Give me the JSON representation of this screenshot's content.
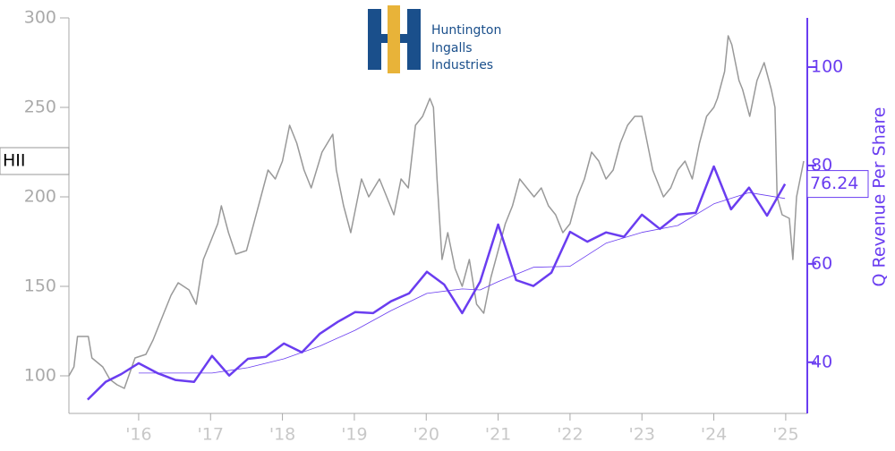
{
  "chart_data": {
    "type": "line",
    "logo_text": [
      "Huntington",
      "Ingalls",
      "Industries"
    ],
    "y2label": "Q Revenue Per Share",
    "xlim": [
      2015.03,
      2025.3
    ],
    "xticks": [
      {
        "value": 2016,
        "label": "'16"
      },
      {
        "value": 2017,
        "label": "'17"
      },
      {
        "value": 2018,
        "label": "'18"
      },
      {
        "value": 2019,
        "label": "'19"
      },
      {
        "value": 2020,
        "label": "'20"
      },
      {
        "value": 2021,
        "label": "'21"
      },
      {
        "value": 2022,
        "label": "'22"
      },
      {
        "value": 2023,
        "label": "'23"
      },
      {
        "value": 2024,
        "label": "'24"
      },
      {
        "value": 2025,
        "label": "'25"
      }
    ],
    "ylim": [
      79,
      300
    ],
    "yticks": [
      100,
      150,
      200,
      250,
      300
    ],
    "y2lim": [
      29.6,
      110
    ],
    "y2ticks": [
      40,
      60,
      80,
      100
    ],
    "series": [
      {
        "name": "HII",
        "color": "#999999",
        "axis": "y",
        "x": [
          2015.03,
          2015.1,
          2015.15,
          2015.3,
          2015.35,
          2015.5,
          2015.6,
          2015.7,
          2015.8,
          2015.95,
          2016.1,
          2016.2,
          2016.35,
          2016.45,
          2016.55,
          2016.7,
          2016.8,
          2016.9,
          2017.0,
          2017.1,
          2017.15,
          2017.25,
          2017.35,
          2017.5,
          2017.6,
          2017.7,
          2017.8,
          2017.9,
          2018.0,
          2018.1,
          2018.2,
          2018.3,
          2018.4,
          2018.55,
          2018.7,
          2018.75,
          2018.85,
          2018.95,
          2019.0,
          2019.1,
          2019.2,
          2019.35,
          2019.45,
          2019.55,
          2019.65,
          2019.75,
          2019.85,
          2019.95,
          2020.05,
          2020.1,
          2020.15,
          2020.22,
          2020.3,
          2020.4,
          2020.5,
          2020.6,
          2020.7,
          2020.8,
          2020.9,
          2021.0,
          2021.1,
          2021.2,
          2021.3,
          2021.4,
          2021.5,
          2021.6,
          2021.7,
          2021.8,
          2021.9,
          2022.0,
          2022.1,
          2022.2,
          2022.3,
          2022.4,
          2022.5,
          2022.6,
          2022.7,
          2022.8,
          2022.9,
          2023.0,
          2023.05,
          2023.15,
          2023.3,
          2023.4,
          2023.5,
          2023.6,
          2023.7,
          2023.8,
          2023.9,
          2024.0,
          2024.05,
          2024.15,
          2024.2,
          2024.25,
          2024.35,
          2024.4,
          2024.5,
          2024.6,
          2024.7,
          2024.8,
          2024.85,
          2024.88,
          2024.95,
          2025.05,
          2025.1,
          2025.15,
          2025.25
        ],
        "values": [
          100,
          105,
          122,
          122,
          110,
          105,
          98,
          95,
          93,
          110,
          112,
          120,
          135,
          145,
          152,
          148,
          140,
          165,
          175,
          185,
          195,
          180,
          168,
          170,
          185,
          200,
          215,
          210,
          220,
          240,
          230,
          215,
          205,
          225,
          235,
          215,
          195,
          180,
          190,
          210,
          200,
          210,
          200,
          190,
          210,
          205,
          240,
          245,
          255,
          250,
          210,
          165,
          180,
          160,
          150,
          165,
          140,
          135,
          155,
          170,
          185,
          195,
          210,
          205,
          200,
          205,
          195,
          190,
          180,
          185,
          200,
          210,
          225,
          220,
          210,
          215,
          230,
          240,
          245,
          245,
          235,
          215,
          200,
          205,
          215,
          220,
          210,
          230,
          245,
          250,
          255,
          270,
          290,
          285,
          265,
          260,
          245,
          265,
          275,
          260,
          250,
          200,
          190,
          188,
          165,
          200,
          220
        ]
      },
      {
        "color": "#6a3df0",
        "axis": "y2",
        "x": [
          2015.29,
          2015.54,
          2015.76,
          2016.0,
          2016.26,
          2016.51,
          2016.77,
          2017.02,
          2017.26,
          2017.52,
          2017.77,
          2018.02,
          2018.27,
          2018.52,
          2018.77,
          2019.01,
          2019.26,
          2019.51,
          2019.76,
          2020.01,
          2020.25,
          2020.5,
          2020.75,
          2021.0,
          2021.25,
          2021.49,
          2021.74,
          2022.0,
          2022.24,
          2022.5,
          2022.75,
          2023.0,
          2023.25,
          2023.5,
          2023.75,
          2024.0,
          2024.24,
          2024.49,
          2024.74,
          2024.99
        ],
        "values": [
          32.4,
          36.0,
          37.6,
          39.8,
          37.8,
          36.4,
          36.0,
          41.3,
          37.3,
          40.7,
          41.1,
          43.8,
          42.0,
          45.8,
          48.2,
          50.2,
          50.0,
          52.4,
          54.0,
          58.4,
          55.8,
          50.0,
          56.4,
          68.0,
          56.7,
          55.5,
          58.2,
          66.5,
          64.5,
          66.4,
          65.5,
          70.0,
          67.1,
          70.0,
          70.4,
          79.8,
          71.1,
          75.5,
          69.8,
          76.24
        ]
      },
      {
        "color": "#6a3df0",
        "axis": "y2",
        "x": [
          2016.0,
          2016.56,
          2017.02,
          2017.52,
          2018.02,
          2018.52,
          2019.01,
          2019.51,
          2020.01,
          2020.5,
          2020.75,
          2021.0,
          2021.49,
          2022.0,
          2022.5,
          2023.0,
          2023.5,
          2024.0,
          2024.49,
          2024.99
        ],
        "values": [
          37.8,
          37.8,
          37.8,
          38.9,
          40.7,
          43.3,
          46.5,
          50.5,
          54.0,
          54.9,
          54.7,
          56.4,
          59.3,
          59.5,
          64.2,
          66.4,
          67.8,
          72.2,
          74.5,
          73.3
        ]
      }
    ]
  }
}
